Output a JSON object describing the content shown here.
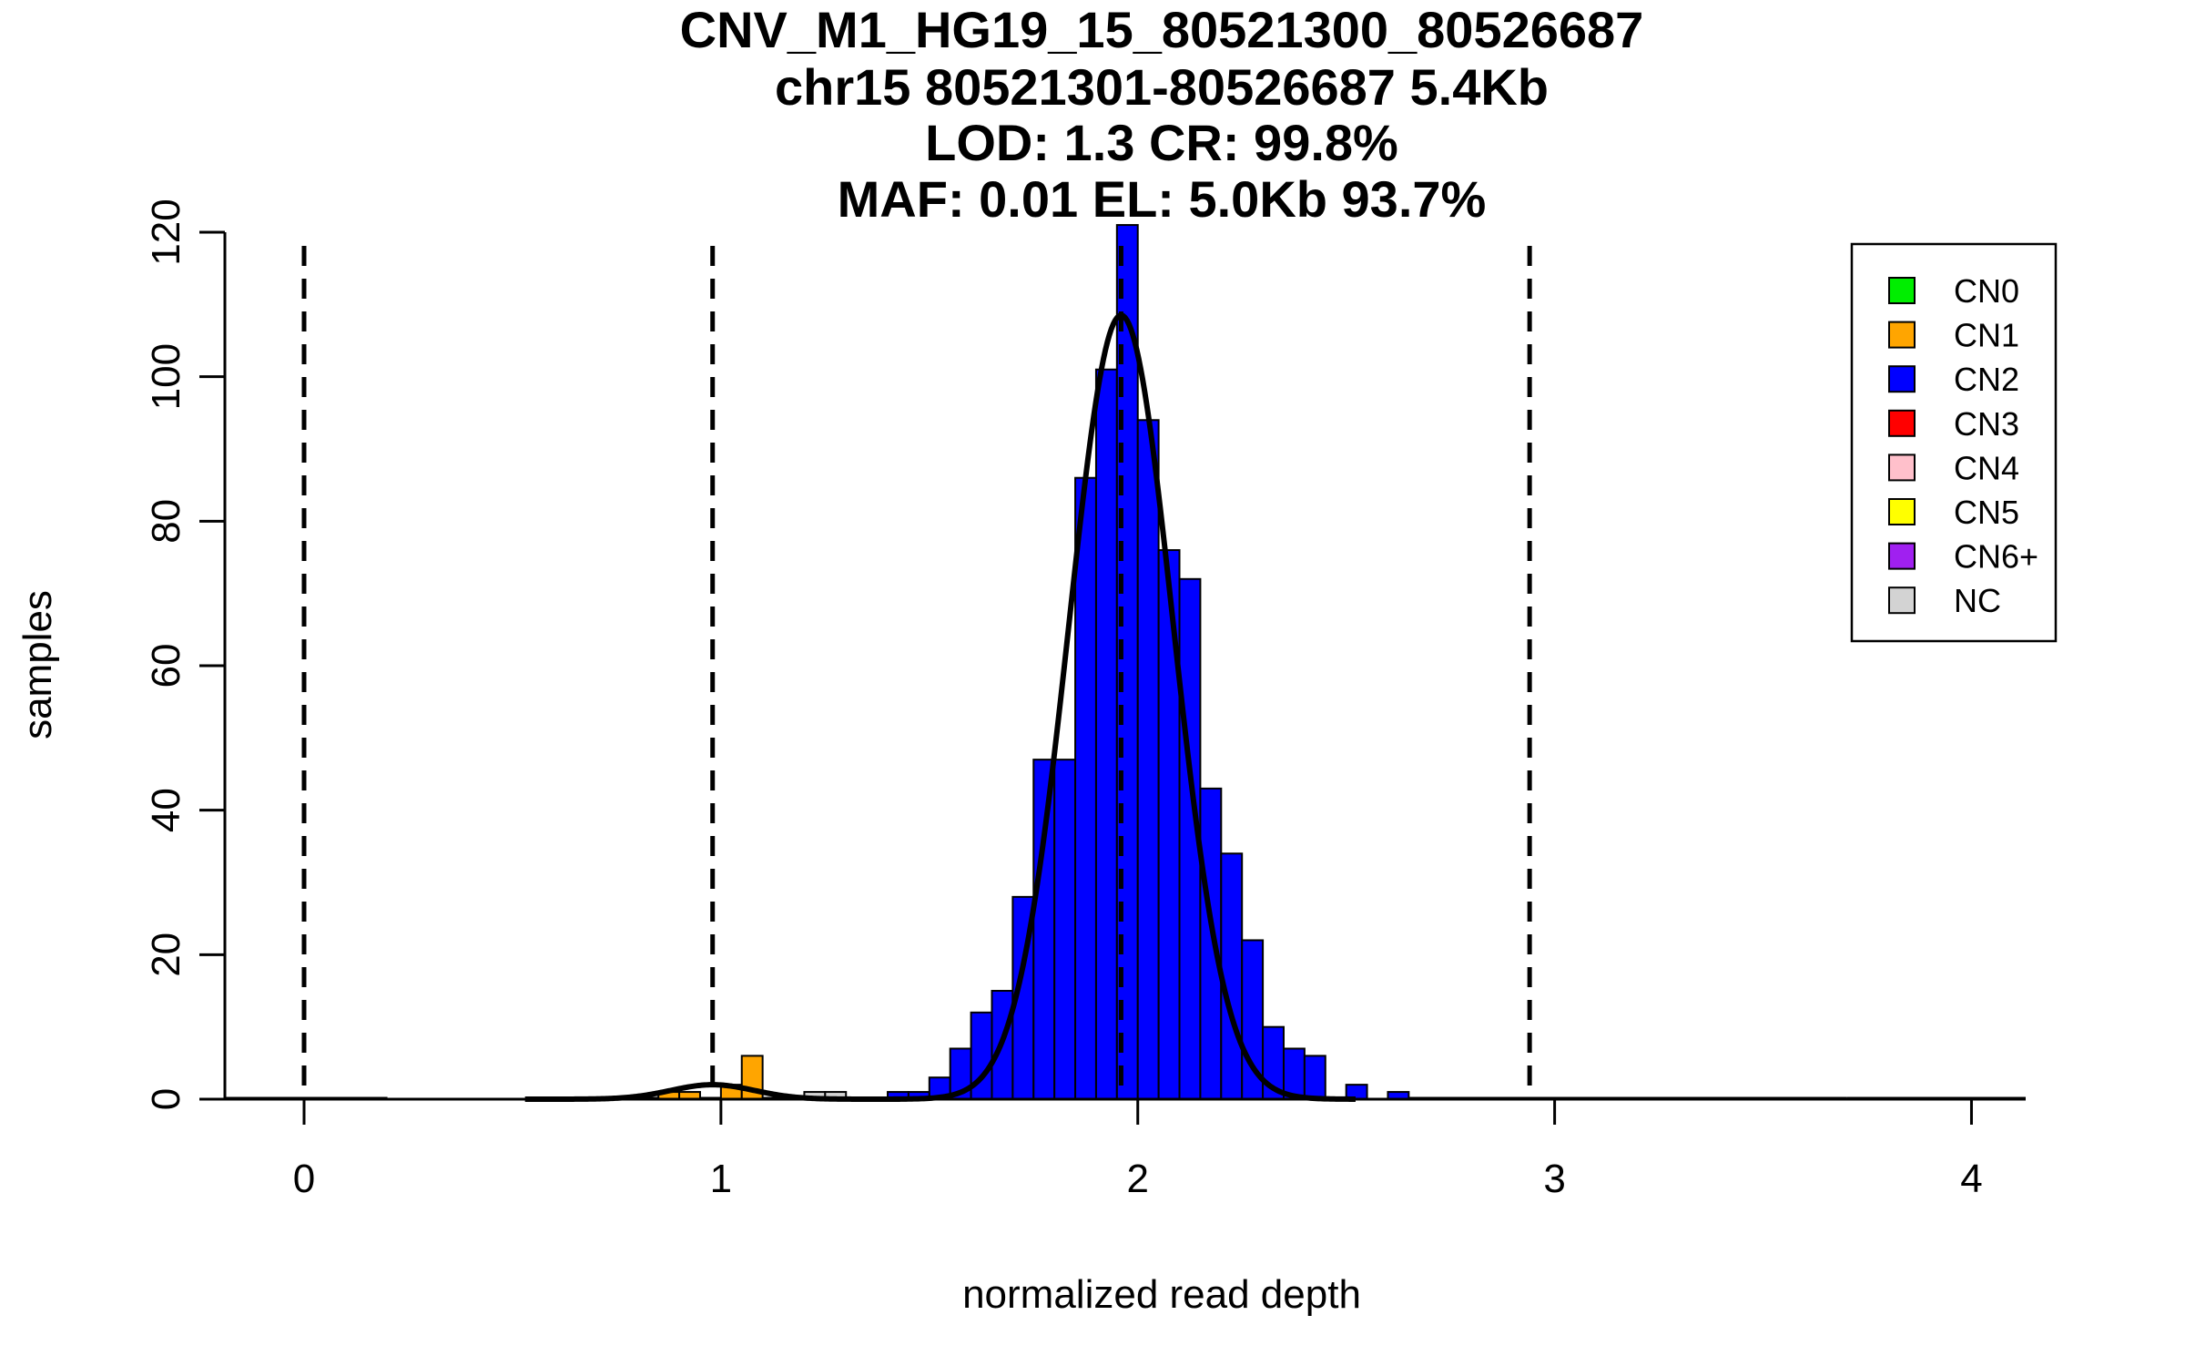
{
  "chart_data": {
    "type": "histogram",
    "title_lines": [
      "CNV_M1_HG19_15_80521300_80526687",
      "chr15 80521301-80526687 5.4Kb",
      "LOD: 1.3 CR: 99.8%",
      "MAF: 0.01 EL: 5.0Kb 93.7%"
    ],
    "xlabel": "normalized read depth",
    "ylabel": "samples",
    "xlim": [
      -0.19,
      4.13
    ],
    "ylim": [
      0,
      120
    ],
    "x_ticks": [
      0,
      1,
      2,
      3,
      4
    ],
    "x_tick_labels": [
      "0",
      "1",
      "2",
      "3",
      "4"
    ],
    "y_ticks": [
      0,
      20,
      40,
      60,
      80,
      100,
      120
    ],
    "y_tick_labels": [
      "0",
      "20",
      "40",
      "60",
      "80",
      "100",
      "120"
    ],
    "bin_width": 0.05,
    "bars": [
      {
        "x0": 0.85,
        "count": 1,
        "cn": "CN1"
      },
      {
        "x0": 0.9,
        "count": 1,
        "cn": "CN1"
      },
      {
        "x0": 1.0,
        "count": 2,
        "cn": "CN1"
      },
      {
        "x0": 1.05,
        "count": 6,
        "cn": "CN1"
      },
      {
        "x0": 1.2,
        "count": 1,
        "cn": "NC"
      },
      {
        "x0": 1.25,
        "count": 1,
        "cn": "NC"
      },
      {
        "x0": 1.4,
        "count": 1,
        "cn": "CN2"
      },
      {
        "x0": 1.45,
        "count": 1,
        "cn": "CN2"
      },
      {
        "x0": 1.5,
        "count": 3,
        "cn": "CN2"
      },
      {
        "x0": 1.55,
        "count": 7,
        "cn": "CN2"
      },
      {
        "x0": 1.6,
        "count": 12,
        "cn": "CN2"
      },
      {
        "x0": 1.65,
        "count": 15,
        "cn": "CN2"
      },
      {
        "x0": 1.7,
        "count": 28,
        "cn": "CN2"
      },
      {
        "x0": 1.75,
        "count": 47,
        "cn": "CN2"
      },
      {
        "x0": 1.8,
        "count": 47,
        "cn": "CN2"
      },
      {
        "x0": 1.85,
        "count": 86,
        "cn": "CN2"
      },
      {
        "x0": 1.9,
        "count": 101,
        "cn": "CN2"
      },
      {
        "x0": 1.95,
        "count": 121,
        "cn": "CN2"
      },
      {
        "x0": 2.0,
        "count": 94,
        "cn": "CN2"
      },
      {
        "x0": 2.05,
        "count": 76,
        "cn": "CN2"
      },
      {
        "x0": 2.1,
        "count": 72,
        "cn": "CN2"
      },
      {
        "x0": 2.15,
        "count": 43,
        "cn": "CN2"
      },
      {
        "x0": 2.2,
        "count": 34,
        "cn": "CN2"
      },
      {
        "x0": 2.25,
        "count": 22,
        "cn": "CN2"
      },
      {
        "x0": 2.3,
        "count": 10,
        "cn": "CN2"
      },
      {
        "x0": 2.35,
        "count": 7,
        "cn": "CN2"
      },
      {
        "x0": 2.4,
        "count": 6,
        "cn": "CN2"
      },
      {
        "x0": 2.5,
        "count": 2,
        "cn": "CN2"
      },
      {
        "x0": 2.6,
        "count": 1,
        "cn": "CN2"
      }
    ],
    "density_curves": [
      {
        "name": "CN1 fit",
        "mean": 0.98,
        "sd": 0.1,
        "peak": 2.0
      },
      {
        "name": "CN2 fit",
        "mean": 1.96,
        "sd": 0.125,
        "peak": 108.5
      }
    ],
    "baseline_segments": [
      {
        "x_start": -0.19,
        "x_end": 0.2
      },
      {
        "x_start": 0.55,
        "x_end": 1.5
      },
      {
        "x_start": 2.6,
        "x_end": 3.7
      },
      {
        "x_start": 3.7,
        "x_end": 4.13
      }
    ],
    "vertical_dashed_lines": [
      0,
      0.98,
      1.96,
      2.94
    ],
    "legend": {
      "position": "top-right",
      "entries": [
        {
          "label": "CN0",
          "color": "#00ee00"
        },
        {
          "label": "CN1",
          "color": "#ffa500"
        },
        {
          "label": "CN2",
          "color": "#0000ff"
        },
        {
          "label": "CN3",
          "color": "#ff0000"
        },
        {
          "label": "CN4",
          "color": "#ffc0cb"
        },
        {
          "label": "CN5",
          "color": "#ffff00"
        },
        {
          "label": "CN6+",
          "color": "#a020f0"
        },
        {
          "label": "NC",
          "color": "#d3d3d3"
        }
      ]
    }
  }
}
